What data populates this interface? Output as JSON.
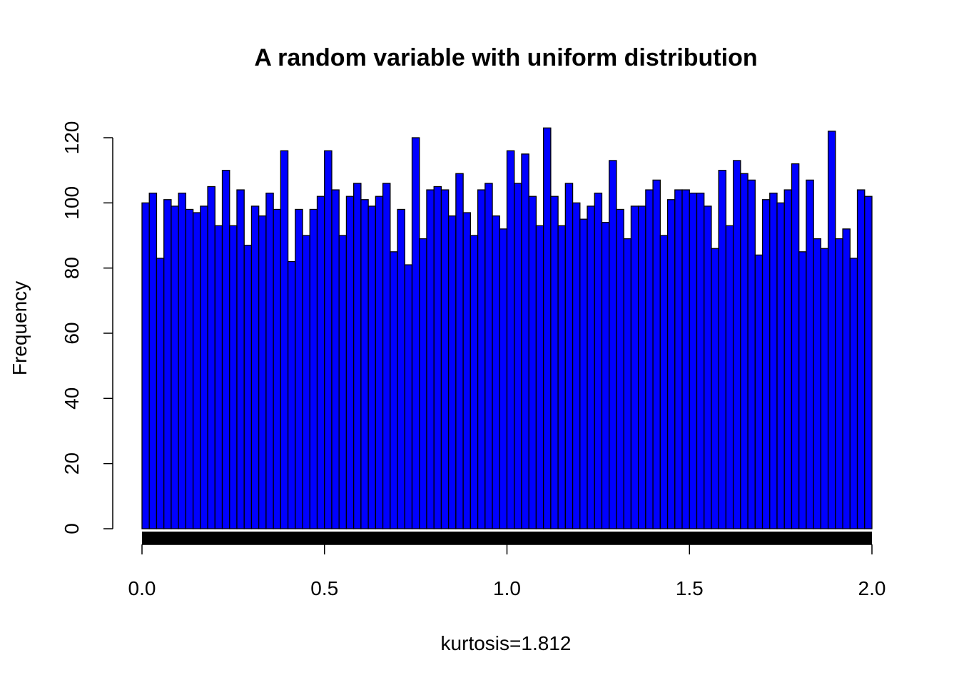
{
  "chart_data": {
    "type": "histogram",
    "title": "A random variable with uniform distribution",
    "xlabel": "kurtosis=1.812",
    "ylabel": "Frequency",
    "color": "#0000ff",
    "bins": [
      0,
      0.02,
      0.04,
      0.06,
      0.08,
      0.1,
      0.12,
      0.14,
      0.16,
      0.18,
      0.2,
      0.22,
      0.24,
      0.26,
      0.28,
      0.3,
      0.32,
      0.34,
      0.36,
      0.38,
      0.4,
      0.42,
      0.44,
      0.46,
      0.48,
      0.5,
      0.52,
      0.54,
      0.56,
      0.58,
      0.6,
      0.62,
      0.64,
      0.66,
      0.68,
      0.7,
      0.72,
      0.74,
      0.76,
      0.78,
      0.8,
      0.82,
      0.84,
      0.86,
      0.88,
      0.9,
      0.92,
      0.94,
      0.96,
      0.98,
      1,
      1.02,
      1.04,
      1.06,
      1.08,
      1.1,
      1.12,
      1.14,
      1.16,
      1.18,
      1.2,
      1.22,
      1.24,
      1.26,
      1.28,
      1.3,
      1.32,
      1.34,
      1.36,
      1.38,
      1.4,
      1.42,
      1.44,
      1.46,
      1.48,
      1.5,
      1.52,
      1.54,
      1.56,
      1.58,
      1.6,
      1.62,
      1.64,
      1.66,
      1.68,
      1.7,
      1.72,
      1.74,
      1.76,
      1.78,
      1.8,
      1.82,
      1.84,
      1.86,
      1.88,
      1.9,
      1.92,
      1.94,
      1.96,
      1.98,
      2
    ],
    "values": [
      100,
      103,
      83,
      101,
      99,
      103,
      98,
      97,
      99,
      105,
      93,
      110,
      93,
      104,
      87,
      99,
      96,
      103,
      98,
      116,
      82,
      98,
      90,
      98,
      102,
      116,
      104,
      90,
      102,
      106,
      101,
      99,
      102,
      106,
      85,
      98,
      81,
      120,
      89,
      104,
      105,
      104,
      96,
      109,
      97,
      90,
      104,
      106,
      96,
      92,
      116,
      106,
      115,
      102,
      93,
      123,
      102,
      93,
      106,
      100,
      95,
      99,
      103,
      94,
      113,
      98,
      89,
      99,
      99,
      104,
      107,
      90,
      101,
      104,
      104,
      103,
      103,
      99,
      86,
      110,
      93,
      113,
      109,
      107,
      84,
      101,
      103,
      100,
      104,
      112,
      85,
      107,
      89,
      86,
      122,
      89,
      92,
      83,
      104,
      102
    ],
    "xlim": [
      0,
      2
    ],
    "xticks": [
      {
        "value": 0,
        "label": "0.0"
      },
      0.5,
      {
        "value": 1,
        "label": "1.0"
      },
      1.5,
      {
        "value": 2,
        "label": "2.0"
      }
    ],
    "ylim": [
      0,
      120
    ],
    "yticks": [
      0,
      20,
      40,
      60,
      80,
      100,
      120
    ]
  }
}
